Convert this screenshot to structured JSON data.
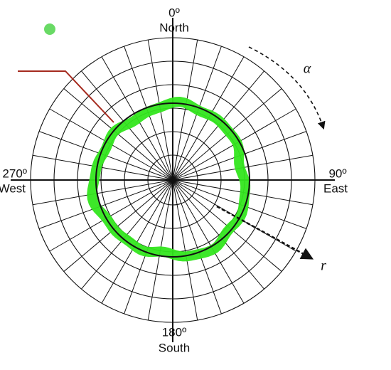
{
  "labels": {
    "north": {
      "degree": "0º",
      "name": "North"
    },
    "east": {
      "degree": "90º",
      "name": "East"
    },
    "south": {
      "degree": "180º",
      "name": "South"
    },
    "west": {
      "degree": "270º",
      "name": "West"
    },
    "alpha": "α",
    "r": "r"
  }
}
